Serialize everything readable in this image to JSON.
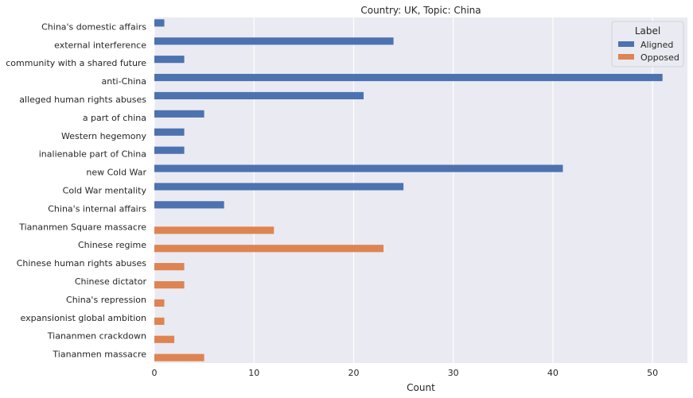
{
  "chart_data": {
    "type": "bar",
    "orientation": "horizontal",
    "title": "Country: UK, Topic: China",
    "xlabel": "Count",
    "ylabel": "",
    "xlim": [
      0,
      53.5
    ],
    "xticks": [
      0,
      10,
      20,
      30,
      40,
      50
    ],
    "grid": true,
    "legend_title": "Label",
    "legend_position": "top-right",
    "categories": [
      "China's domestic affairs",
      "external interference",
      "community with a shared future",
      "anti-China",
      "alleged human rights abuses",
      "a part of china",
      "Western hegemony",
      "inalienable part of China",
      "new Cold War",
      "Cold War mentality",
      "China's internal affairs",
      "Tiananmen Square massacre",
      "Chinese regime",
      "Chinese human rights abuses",
      "Chinese dictator",
      "China's repression",
      "expansionist global ambition",
      "Tiananmen crackdown",
      "Tiananmen massacre"
    ],
    "series": [
      {
        "name": "Aligned",
        "color": "#4c72b0",
        "values": [
          1,
          24,
          3,
          51,
          21,
          5,
          3,
          3,
          41,
          25,
          7,
          null,
          null,
          null,
          null,
          null,
          null,
          null,
          null
        ]
      },
      {
        "name": "Opposed",
        "color": "#dd8452",
        "values": [
          null,
          null,
          null,
          null,
          null,
          null,
          null,
          null,
          null,
          null,
          null,
          12,
          23,
          3,
          3,
          1,
          1,
          2,
          5
        ]
      }
    ]
  }
}
